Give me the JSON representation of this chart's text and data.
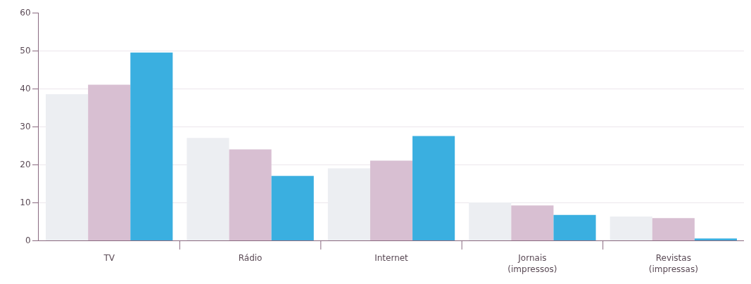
{
  "chart_data": {
    "type": "bar",
    "categories": [
      "TV",
      "Rádio",
      "Internet",
      "Jornais\n(impressos)",
      "Revistas\n(impressas)"
    ],
    "series": [
      {
        "color": "#eceef2",
        "values": [
          38.5,
          27,
          19,
          10,
          6.3
        ]
      },
      {
        "color": "#d8bfd2",
        "values": [
          41,
          24,
          21,
          9.2,
          5.9
        ]
      },
      {
        "color": "#3aafe0",
        "values": [
          49.5,
          17,
          27.5,
          6.7,
          0.5
        ]
      }
    ],
    "ylim": [
      0,
      60
    ],
    "yticks": [
      0,
      10,
      20,
      30,
      40,
      50,
      60
    ],
    "grid": "y"
  }
}
